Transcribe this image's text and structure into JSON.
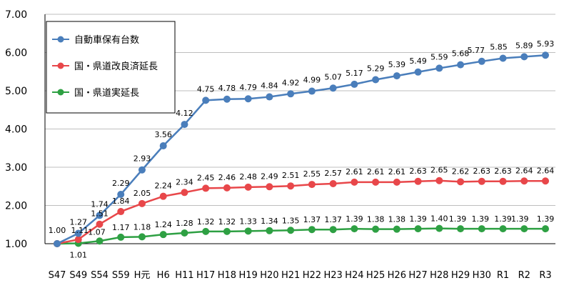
{
  "chart_data": {
    "type": "line",
    "categories": [
      "S47",
      "S49",
      "S54",
      "S59",
      "H元",
      "H6",
      "H11",
      "H17",
      "H18",
      "H19",
      "H20",
      "H21",
      "H22",
      "H23",
      "H24",
      "H25",
      "H26",
      "H27",
      "H28",
      "H29",
      "H30",
      "R1",
      "R2",
      "R3"
    ],
    "ylim": [
      1.0,
      7.0
    ],
    "yticks": [
      "1.00",
      "2.00",
      "3.00",
      "4.00",
      "5.00",
      "6.00",
      "7.00"
    ],
    "grid": true,
    "legend_position": "top-left",
    "series": [
      {
        "name": "自動車保有台数",
        "color": "#4a7ebb",
        "values": [
          1.0,
          1.27,
          1.74,
          2.29,
          2.93,
          3.56,
          4.12,
          4.75,
          4.78,
          4.79,
          4.84,
          4.92,
          4.99,
          5.07,
          5.17,
          5.29,
          5.39,
          5.49,
          5.59,
          5.68,
          5.77,
          5.85,
          5.89,
          5.93
        ],
        "labels": [
          "1.00",
          "1.27",
          "1.74",
          "2.29",
          "2.93",
          "3.56",
          "4.12",
          "4.75",
          "4.78",
          "4.79",
          "4.84",
          "4.92",
          "4.99",
          "5.07",
          "5.17",
          "5.29",
          "5.39",
          "5.49",
          "5.59",
          "5.68",
          "5.77",
          "5.85",
          "5.89",
          "5.93"
        ]
      },
      {
        "name": "国・県道改良済延長",
        "color": "#e8474a",
        "values": [
          1.0,
          1.11,
          1.51,
          1.84,
          2.05,
          2.24,
          2.34,
          2.45,
          2.46,
          2.48,
          2.49,
          2.51,
          2.55,
          2.57,
          2.61,
          2.61,
          2.61,
          2.63,
          2.65,
          2.62,
          2.63,
          2.63,
          2.64,
          2.64
        ],
        "labels": [
          "",
          "1.11",
          "1.51",
          "1.84",
          "2.05",
          "2.24",
          "2.34",
          "2.45",
          "2.46",
          "2.48",
          "2.49",
          "2.51",
          "2.55",
          "2.57",
          "2.61",
          "2.61",
          "2.61",
          "2.63",
          "2.65",
          "2.62",
          "2.63",
          "2.63",
          "2.64",
          "2.64"
        ]
      },
      {
        "name": "国・県道実延長",
        "color": "#2ea043",
        "values": [
          1.0,
          1.01,
          1.07,
          1.17,
          1.18,
          1.24,
          1.28,
          1.32,
          1.32,
          1.33,
          1.34,
          1.35,
          1.37,
          1.37,
          1.39,
          1.38,
          1.38,
          1.39,
          1.4,
          1.39,
          1.39,
          1.39,
          1.39,
          1.39
        ],
        "labels": [
          "",
          "1.01",
          "1.07",
          "1.17",
          "1.18",
          "1.24",
          "1.28",
          "1.32",
          "1.32",
          "1.33",
          "1.34",
          "1.35",
          "1.37",
          "1.37",
          "1.39",
          "1.38",
          "1.38",
          "1.39",
          "1.40",
          "1.39",
          "1.39",
          "1.39",
          "1.39",
          "1.39"
        ]
      }
    ]
  }
}
